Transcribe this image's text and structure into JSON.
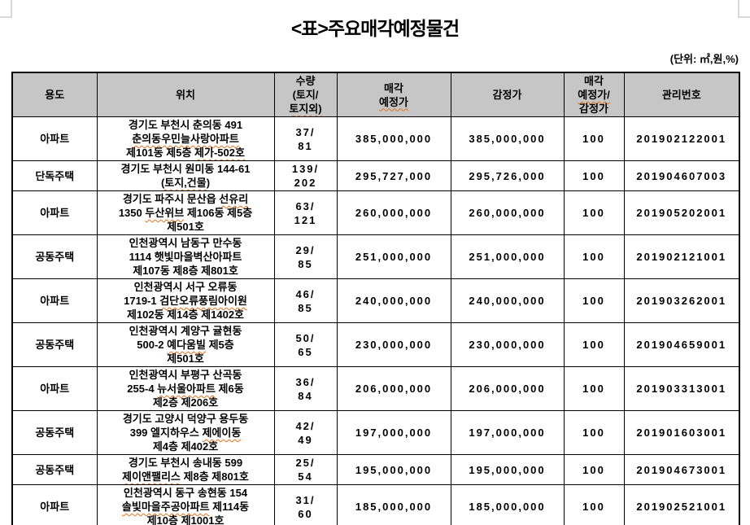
{
  "page": {
    "title": "<표>주요매각예정물건",
    "unit_note": "(단위: ㎡,원,%)"
  },
  "table": {
    "columns": [
      {
        "key": "use",
        "label_lines": [
          {
            "text": "용도",
            "wavy": false
          }
        ]
      },
      {
        "key": "location",
        "label_lines": [
          {
            "text": "위치",
            "wavy": false
          }
        ]
      },
      {
        "key": "quantity",
        "label_lines": [
          {
            "text": "수량",
            "wavy": false
          },
          {
            "text": "(토지/",
            "wavy": false
          },
          {
            "text": "토지외)",
            "wavy": true
          }
        ]
      },
      {
        "key": "expected_price",
        "label_lines": [
          {
            "text": "매각",
            "wavy": false
          },
          {
            "text": "예정가",
            "wavy": true
          }
        ]
      },
      {
        "key": "appraisal_price",
        "label_lines": [
          {
            "text": "감정가",
            "wavy": false
          }
        ]
      },
      {
        "key": "ratio",
        "label_lines": [
          {
            "text": "매각",
            "wavy": false
          },
          {
            "text": "예정가/",
            "wavy": true
          },
          {
            "text": "감정가",
            "wavy": false
          }
        ]
      },
      {
        "key": "management_no",
        "label_lines": [
          {
            "text": "관리번호",
            "wavy": false
          }
        ]
      }
    ],
    "rows": [
      {
        "use": "아파트",
        "location_lines": [
          [
            {
              "text": "경기도 부천시 춘의동 491",
              "wavy": false
            }
          ],
          [
            {
              "text": "춘의동우민늘사랑아파트",
              "wavy": true
            }
          ],
          [
            {
              "text": "제101동 제5층 ",
              "wavy": false
            },
            {
              "text": "제가-502호",
              "wavy": true
            }
          ]
        ],
        "quantity_lines": [
          "37/",
          "81"
        ],
        "expected_price": "385,000,000",
        "appraisal_price": "385,000,000",
        "ratio": "100",
        "management_no": "201902122001"
      },
      {
        "use": "단독주택",
        "location_lines": [
          [
            {
              "text": "경기도 부천시 원미동 144-61",
              "wavy": false
            }
          ],
          [
            {
              "text": "(토지,건물)",
              "wavy": true
            }
          ]
        ],
        "quantity_lines": [
          "139/",
          "202"
        ],
        "expected_price": "295,727,000",
        "appraisal_price": "295,726,000",
        "ratio": "100",
        "management_no": "201904607003"
      },
      {
        "use": "아파트",
        "location_lines": [
          [
            {
              "text": "경기도 파주시 문산읍 ",
              "wavy": false
            },
            {
              "text": "선유리",
              "wavy": true
            }
          ],
          [
            {
              "text": "1350 ",
              "wavy": false
            },
            {
              "text": "두산위브",
              "wavy": true
            },
            {
              "text": " 제106동 제5층",
              "wavy": false
            }
          ],
          [
            {
              "text": "제501호",
              "wavy": false
            }
          ]
        ],
        "quantity_lines": [
          "63/",
          "121"
        ],
        "expected_price": "260,000,000",
        "appraisal_price": "260,000,000",
        "ratio": "100",
        "management_no": "201905202001"
      },
      {
        "use": "공동주택",
        "location_lines": [
          [
            {
              "text": "인천광역시 남동구 만수동",
              "wavy": false
            }
          ],
          [
            {
              "text": "1114 햇빛마을벽산아파트",
              "wavy": false
            }
          ],
          [
            {
              "text": "제107동 제8층 제801호",
              "wavy": false
            }
          ]
        ],
        "quantity_lines": [
          "29/",
          "85"
        ],
        "expected_price": "251,000,000",
        "appraisal_price": "251,000,000",
        "ratio": "100",
        "management_no": "201902121001"
      },
      {
        "use": "아파트",
        "location_lines": [
          [
            {
              "text": "인천광역시 서구 오류동",
              "wavy": false
            }
          ],
          [
            {
              "text": "1719-1 ",
              "wavy": false
            },
            {
              "text": "검단오류풍림아이원",
              "wavy": true
            }
          ],
          [
            {
              "text": "제102동 제14층 제1402호",
              "wavy": false
            }
          ]
        ],
        "quantity_lines": [
          "46/",
          "85"
        ],
        "expected_price": "240,000,000",
        "appraisal_price": "240,000,000",
        "ratio": "100",
        "management_no": "201903262001"
      },
      {
        "use": "공동주택",
        "location_lines": [
          [
            {
              "text": "인천광역시 계양구 귤현동",
              "wavy": false
            }
          ],
          [
            {
              "text": "500-2 ",
              "wavy": false
            },
            {
              "text": "예다움빌",
              "wavy": true
            },
            {
              "text": " 제5층",
              "wavy": false
            }
          ],
          [
            {
              "text": "제501호",
              "wavy": false
            }
          ]
        ],
        "quantity_lines": [
          "50/",
          "65"
        ],
        "expected_price": "230,000,000",
        "appraisal_price": "230,000,000",
        "ratio": "100",
        "management_no": "201904659001"
      },
      {
        "use": "아파트",
        "location_lines": [
          [
            {
              "text": "인천광역시 부평구 산곡동",
              "wavy": false
            }
          ],
          [
            {
              "text": "255-4 ",
              "wavy": false
            },
            {
              "text": "뉴서울아파트",
              "wavy": true
            },
            {
              "text": " 제6동",
              "wavy": false
            }
          ],
          [
            {
              "text": "제2층 제206호",
              "wavy": false
            }
          ]
        ],
        "quantity_lines": [
          "36/",
          "84"
        ],
        "expected_price": "206,000,000",
        "appraisal_price": "206,000,000",
        "ratio": "100",
        "management_no": "201903313001"
      },
      {
        "use": "공동주택",
        "location_lines": [
          [
            {
              "text": "경기도 고양시 덕양구 용두동",
              "wavy": false
            }
          ],
          [
            {
              "text": "399 엘지하우스 ",
              "wavy": false
            },
            {
              "text": "제에이동",
              "wavy": true
            }
          ],
          [
            {
              "text": "제4층 제402호",
              "wavy": false
            }
          ]
        ],
        "quantity_lines": [
          "42/",
          "49"
        ],
        "expected_price": "197,000,000",
        "appraisal_price": "197,000,000",
        "ratio": "100",
        "management_no": "201901603001"
      },
      {
        "use": "공동주택",
        "location_lines": [
          [
            {
              "text": "경기도 부천시 송내동 599",
              "wavy": false
            }
          ],
          [
            {
              "text": "제이앤팰리스",
              "wavy": true
            },
            {
              "text": " 제8층 제801호",
              "wavy": false
            }
          ]
        ],
        "quantity_lines": [
          "25/",
          "54"
        ],
        "expected_price": "195,000,000",
        "appraisal_price": "195,000,000",
        "ratio": "100",
        "management_no": "201904673001"
      },
      {
        "use": "아파트",
        "location_lines": [
          [
            {
              "text": "인천광역시 동구 송현동 154",
              "wavy": false
            }
          ],
          [
            {
              "text": "솔빛마을주공아파트",
              "wavy": true
            },
            {
              "text": " 제114동",
              "wavy": false
            }
          ],
          [
            {
              "text": "제10층 제1001호",
              "wavy": false
            }
          ]
        ],
        "quantity_lines": [
          "31/",
          "60"
        ],
        "expected_price": "185,000,000",
        "appraisal_price": "185,000,000",
        "ratio": "100",
        "management_no": "201902521001"
      }
    ]
  }
}
